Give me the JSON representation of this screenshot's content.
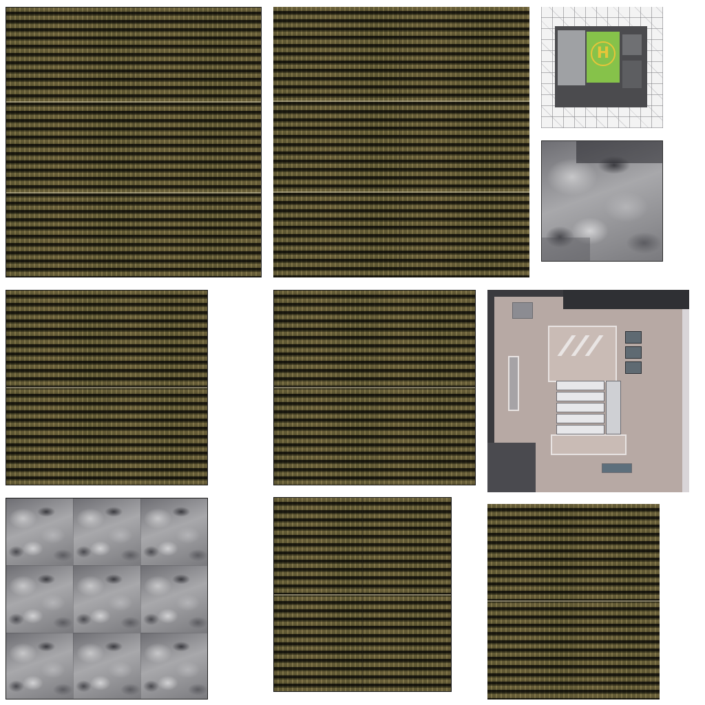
{
  "sheet": {
    "background": "#ffffff"
  },
  "tiles": [
    {
      "id": "facade-large-1",
      "kind": "facade-texture",
      "icon": "building-facade-icon"
    },
    {
      "id": "facade-large-2",
      "kind": "facade-texture",
      "icon": "building-facade-icon"
    },
    {
      "id": "helipad-roof",
      "kind": "helipad-texture",
      "icon": "helipad-icon",
      "pad_letter": "H",
      "pad_color": "#86c24a",
      "marking_color": "#e6c53a"
    },
    {
      "id": "rubble-single",
      "kind": "rubble-texture",
      "icon": "rubble-icon"
    },
    {
      "id": "facade-medium-1",
      "kind": "facade-texture",
      "icon": "building-facade-icon"
    },
    {
      "id": "facade-medium-2",
      "kind": "facade-texture",
      "icon": "building-facade-icon"
    },
    {
      "id": "rooftop-hvac",
      "kind": "rooftop-texture",
      "icon": "rooftop-icon"
    },
    {
      "id": "rubble-tiled",
      "kind": "rubble-texture",
      "icon": "rubble-icon",
      "repeat": "3x3"
    },
    {
      "id": "facade-small-1",
      "kind": "facade-texture",
      "icon": "building-facade-icon"
    },
    {
      "id": "facade-small-2",
      "kind": "facade-texture",
      "icon": "building-facade-icon"
    }
  ],
  "colors": {
    "facade_cladding": "#b9b08e",
    "facade_window": "#2c2a22",
    "rubble_base": "#8d8d90",
    "rooftop_base": "#b7a9a4"
  }
}
